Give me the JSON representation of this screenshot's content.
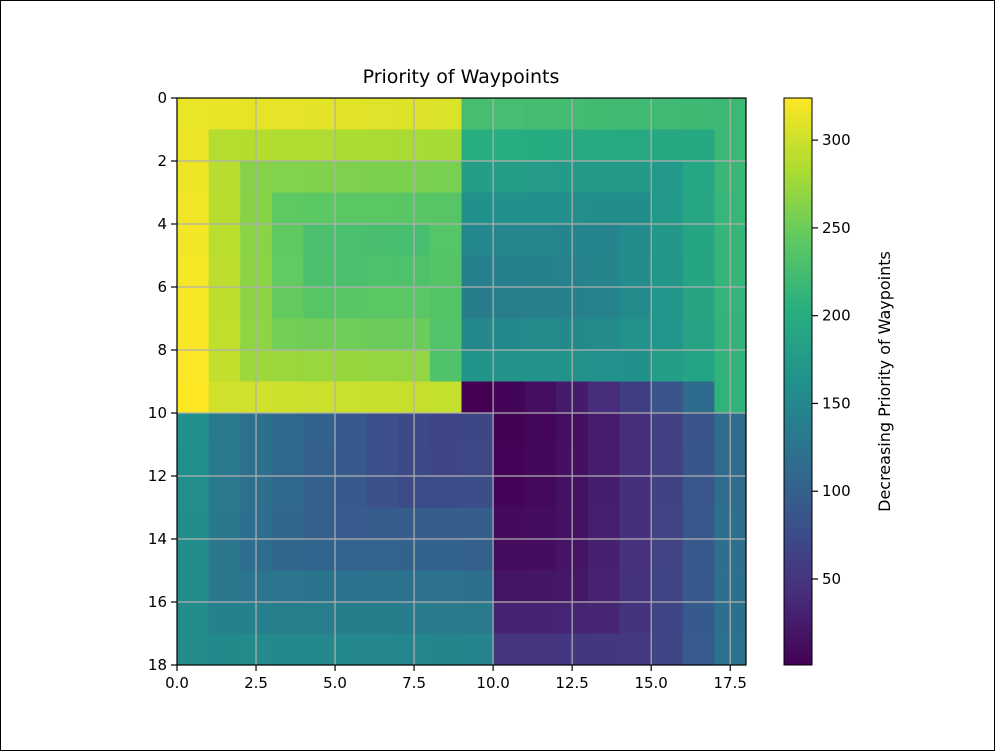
{
  "chart_data": {
    "type": "heatmap",
    "title": "Priority of Waypoints",
    "xlabel": "",
    "ylabel": "",
    "colormap": "viridis",
    "grid": true,
    "origin": "upper",
    "xlim": [
      0,
      18
    ],
    "ylim": [
      18,
      0
    ],
    "xticks": [
      "0.0",
      "2.5",
      "5.0",
      "7.5",
      "10.0",
      "12.5",
      "15.0",
      "17.5"
    ],
    "yticks": [
      "0",
      "2",
      "4",
      "6",
      "8",
      "10",
      "12",
      "14",
      "16",
      "18"
    ],
    "colorbar": {
      "label": "Decreasing Priority of Waypoints",
      "min": 1,
      "max": 324,
      "ticks": [
        "50",
        "100",
        "150",
        "200",
        "250",
        "300"
      ]
    },
    "values": [
      [
        315,
        314,
        313,
        312,
        311,
        310,
        309,
        308,
        307,
        226,
        225,
        224,
        223,
        222,
        221,
        220,
        219,
        218
      ],
      [
        316,
        287,
        286,
        285,
        284,
        283,
        282,
        281,
        280,
        201,
        200,
        199,
        198,
        197,
        196,
        195,
        194,
        217
      ],
      [
        317,
        288,
        263,
        262,
        261,
        260,
        259,
        258,
        257,
        180,
        179,
        178,
        177,
        176,
        175,
        174,
        193,
        216
      ],
      [
        318,
        289,
        264,
        243,
        242,
        241,
        240,
        239,
        238,
        163,
        162,
        161,
        160,
        159,
        158,
        173,
        192,
        215
      ],
      [
        319,
        290,
        265,
        244,
        229,
        228,
        227,
        226,
        237,
        150,
        149,
        148,
        147,
        146,
        157,
        172,
        191,
        214
      ],
      [
        320,
        291,
        266,
        245,
        230,
        230,
        231,
        232,
        236,
        141,
        141,
        142,
        143,
        145,
        156,
        171,
        190,
        213
      ],
      [
        321,
        292,
        267,
        246,
        238,
        239,
        240,
        241,
        235,
        137,
        138,
        139,
        140,
        144,
        155,
        170,
        189,
        212
      ],
      [
        322,
        293,
        268,
        253,
        252,
        251,
        250,
        249,
        234,
        151,
        152,
        153,
        154,
        155,
        165,
        169,
        188,
        211
      ],
      [
        323,
        294,
        275,
        274,
        273,
        272,
        271,
        270,
        233,
        168,
        167,
        166,
        165,
        164,
        163,
        181,
        187,
        210
      ],
      [
        324,
        302,
        301,
        300,
        299,
        298,
        297,
        296,
        295,
        1,
        5,
        13,
        25,
        41,
        61,
        85,
        113,
        209
      ],
      [
        162,
        133,
        120,
        111,
        102,
        90,
        78,
        72,
        68,
        70,
        2,
        6,
        14,
        26,
        42,
        62,
        86,
        114
      ],
      [
        161,
        132,
        119,
        110,
        101,
        91,
        79,
        73,
        69,
        71,
        3,
        7,
        15,
        27,
        43,
        63,
        87,
        115
      ],
      [
        160,
        131,
        118,
        109,
        100,
        92,
        80,
        74,
        75,
        76,
        4,
        8,
        16,
        28,
        44,
        64,
        88,
        116
      ],
      [
        159,
        130,
        117,
        108,
        99,
        93,
        94,
        95,
        96,
        97,
        9,
        10,
        17,
        29,
        45,
        65,
        89,
        117
      ],
      [
        158,
        129,
        116,
        107,
        106,
        105,
        104,
        103,
        102,
        101,
        11,
        12,
        18,
        30,
        46,
        66,
        90,
        118
      ],
      [
        157,
        128,
        127,
        126,
        125,
        124,
        123,
        122,
        121,
        120,
        19,
        20,
        21,
        31,
        47,
        67,
        91,
        119
      ],
      [
        156,
        141,
        140,
        139,
        138,
        137,
        136,
        135,
        134,
        133,
        32,
        33,
        34,
        35,
        48,
        68,
        92,
        120
      ],
      [
        155,
        154,
        153,
        152,
        151,
        150,
        149,
        148,
        147,
        146,
        49,
        50,
        51,
        52,
        53,
        69,
        93,
        121
      ]
    ]
  }
}
